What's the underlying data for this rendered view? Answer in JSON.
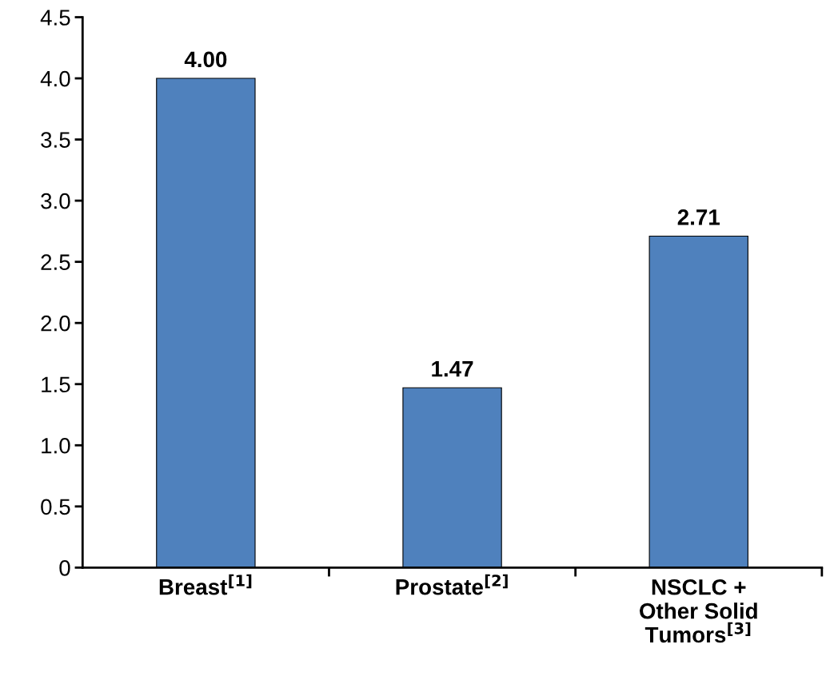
{
  "chart_data": {
    "type": "bar",
    "categories": [
      "Breast$^{[1]}$",
      "Prostate$^{[2]}$",
      "NSCLC +\nOther Solid\nTumors$^{[3]}$"
    ],
    "values": [
      4.0,
      1.47,
      2.71
    ],
    "value_labels": [
      "4.00",
      "1.47",
      "2.71"
    ],
    "color": "#4f81bd",
    "ylim": [
      0,
      4.5
    ],
    "yticks": [
      0,
      {
        "value": 0.5,
        "label": "0.5"
      },
      {
        "value": 1,
        "label": "1.0"
      },
      {
        "value": 1.5,
        "label": "1.5"
      },
      {
        "value": 2,
        "label": "2.0"
      },
      {
        "value": 2.5,
        "label": "2.5"
      },
      {
        "value": 3,
        "label": "3.0"
      },
      {
        "value": 3.5,
        "label": "3.5"
      },
      {
        "value": 4,
        "label": "4.0"
      },
      {
        "value": 4.5,
        "label": "4.5"
      }
    ],
    "grid": false,
    "legend": false
  }
}
